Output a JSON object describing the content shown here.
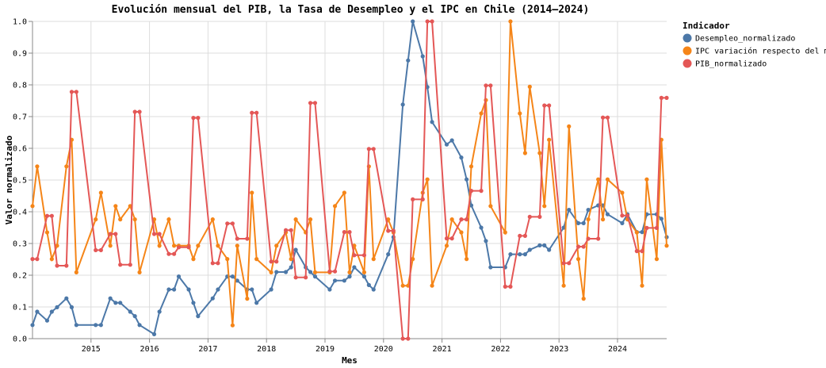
{
  "chart_data": {
    "type": "line",
    "title": "Evolución mensual del PIB, la Tasa de Desempleo y el IPC en Chile (2014–2024)",
    "xlabel": "Mes",
    "ylabel": "Valor normalizado",
    "ylim": [
      0,
      1
    ],
    "xlim": [
      2014.0,
      2024.84
    ],
    "y_ticks": [
      "0.0",
      "0.1",
      "0.2",
      "0.3",
      "0.4",
      "0.5",
      "0.6",
      "0.7",
      "0.8",
      "0.9",
      "1.0"
    ],
    "x_ticks": [
      "2015",
      "2016",
      "2017",
      "2018",
      "2019",
      "2020",
      "2021",
      "2022",
      "2023",
      "2024"
    ],
    "grid": true,
    "legend": {
      "title": "Indicador",
      "position": "top-right"
    },
    "series": [
      {
        "name": "Desempleo_normalizado",
        "color": "#4c78a8",
        "x": [
          2014.0,
          2014.08,
          2014.25,
          2014.33,
          2014.42,
          2014.58,
          2014.67,
          2014.75,
          2015.08,
          2015.17,
          2015.33,
          2015.42,
          2015.5,
          2015.67,
          2015.75,
          2015.83,
          2016.08,
          2016.17,
          2016.33,
          2016.42,
          2016.5,
          2016.67,
          2016.75,
          2016.83,
          2017.08,
          2017.17,
          2017.33,
          2017.42,
          2017.5,
          2017.67,
          2017.75,
          2017.83,
          2018.08,
          2018.17,
          2018.33,
          2018.42,
          2018.5,
          2018.67,
          2018.75,
          2018.83,
          2019.08,
          2019.17,
          2019.33,
          2019.42,
          2019.5,
          2019.67,
          2019.75,
          2019.83,
          2020.08,
          2020.17,
          2020.33,
          2020.42,
          2020.5,
          2020.67,
          2020.75,
          2020.83,
          2021.08,
          2021.17,
          2021.33,
          2021.42,
          2021.5,
          2021.67,
          2021.75,
          2021.83,
          2022.08,
          2022.17,
          2022.33,
          2022.42,
          2022.5,
          2022.67,
          2022.75,
          2022.83,
          2023.08,
          2023.17,
          2023.33,
          2023.42,
          2023.5,
          2023.67,
          2023.75,
          2023.83,
          2024.08,
          2024.17,
          2024.33,
          2024.42,
          2024.5,
          2024.67,
          2024.75,
          2024.84
        ],
        "values": [
          0.043,
          0.085,
          0.057,
          0.085,
          0.099,
          0.127,
          0.099,
          0.043,
          0.043,
          0.043,
          0.127,
          0.113,
          0.113,
          0.085,
          0.071,
          0.043,
          0.014,
          0.085,
          0.155,
          0.155,
          0.196,
          0.155,
          0.113,
          0.071,
          0.127,
          0.155,
          0.196,
          0.196,
          0.183,
          0.155,
          0.155,
          0.113,
          0.155,
          0.21,
          0.21,
          0.225,
          0.28,
          0.225,
          0.21,
          0.196,
          0.155,
          0.183,
          0.183,
          0.196,
          0.225,
          0.196,
          0.169,
          0.155,
          0.266,
          0.32,
          0.738,
          0.877,
          1.0,
          0.89,
          0.793,
          0.683,
          0.612,
          0.625,
          0.571,
          0.502,
          0.42,
          0.35,
          0.308,
          0.225,
          0.225,
          0.266,
          0.266,
          0.266,
          0.28,
          0.294,
          0.294,
          0.28,
          0.35,
          0.406,
          0.364,
          0.364,
          0.406,
          0.42,
          0.42,
          0.392,
          0.364,
          0.392,
          0.336,
          0.336,
          0.392,
          0.392,
          0.378,
          0.32
        ]
      },
      {
        "name": "IPC variación respecto del mes anterior",
        "color": "#f58518",
        "x": [
          2014.0,
          2014.08,
          2014.25,
          2014.33,
          2014.42,
          2014.58,
          2014.67,
          2014.75,
          2015.08,
          2015.17,
          2015.33,
          2015.42,
          2015.5,
          2015.67,
          2015.75,
          2015.83,
          2016.08,
          2016.17,
          2016.33,
          2016.42,
          2016.5,
          2016.67,
          2016.75,
          2016.83,
          2017.08,
          2017.17,
          2017.33,
          2017.42,
          2017.5,
          2017.67,
          2017.75,
          2017.83,
          2018.08,
          2018.17,
          2018.33,
          2018.42,
          2018.5,
          2018.67,
          2018.75,
          2018.83,
          2019.08,
          2019.17,
          2019.33,
          2019.42,
          2019.5,
          2019.67,
          2019.75,
          2019.83,
          2020.08,
          2020.17,
          2020.33,
          2020.42,
          2020.5,
          2020.67,
          2020.75,
          2020.83,
          2021.08,
          2021.17,
          2021.33,
          2021.42,
          2021.5,
          2021.67,
          2021.75,
          2021.83,
          2022.08,
          2022.17,
          2022.33,
          2022.42,
          2022.5,
          2022.67,
          2022.75,
          2022.83,
          2023.08,
          2023.17,
          2023.33,
          2023.42,
          2023.5,
          2023.67,
          2023.75,
          2023.83,
          2024.08,
          2024.17,
          2024.33,
          2024.42,
          2024.5,
          2024.67,
          2024.75,
          2024.84
        ],
        "values": [
          0.418,
          0.543,
          0.335,
          0.251,
          0.293,
          0.543,
          0.627,
          0.209,
          0.376,
          0.46,
          0.293,
          0.418,
          0.376,
          0.418,
          0.376,
          0.209,
          0.376,
          0.293,
          0.376,
          0.293,
          0.293,
          0.293,
          0.251,
          0.293,
          0.376,
          0.293,
          0.251,
          0.042,
          0.293,
          0.126,
          0.46,
          0.251,
          0.209,
          0.293,
          0.335,
          0.251,
          0.376,
          0.335,
          0.376,
          0.209,
          0.209,
          0.418,
          0.46,
          0.209,
          0.293,
          0.209,
          0.543,
          0.251,
          0.376,
          0.335,
          0.167,
          0.167,
          0.251,
          0.46,
          0.502,
          0.167,
          0.293,
          0.376,
          0.335,
          0.251,
          0.543,
          0.71,
          0.752,
          0.418,
          0.335,
          1.0,
          0.71,
          0.585,
          0.794,
          0.585,
          0.418,
          0.627,
          0.167,
          0.669,
          0.251,
          0.126,
          0.376,
          0.502,
          0.376,
          0.502,
          0.46,
          0.376,
          0.335,
          0.167,
          0.502,
          0.251,
          0.627,
          0.293
        ]
      },
      {
        "name": "PIB_normalizado",
        "color": "#e45756",
        "x": [
          2014.0,
          2014.08,
          2014.25,
          2014.33,
          2014.42,
          2014.58,
          2014.67,
          2014.75,
          2015.08,
          2015.17,
          2015.33,
          2015.42,
          2015.5,
          2015.67,
          2015.75,
          2015.83,
          2016.08,
          2016.17,
          2016.33,
          2016.42,
          2016.5,
          2016.67,
          2016.75,
          2016.83,
          2017.08,
          2017.17,
          2017.33,
          2017.42,
          2017.5,
          2017.67,
          2017.75,
          2017.83,
          2018.08,
          2018.17,
          2018.33,
          2018.42,
          2018.5,
          2018.67,
          2018.75,
          2018.83,
          2019.08,
          2019.17,
          2019.33,
          2019.42,
          2019.5,
          2019.67,
          2019.75,
          2019.83,
          2020.08,
          2020.17,
          2020.33,
          2020.42,
          2020.5,
          2020.67,
          2020.75,
          2020.83,
          2021.08,
          2021.17,
          2021.33,
          2021.42,
          2021.5,
          2021.67,
          2021.75,
          2021.83,
          2022.08,
          2022.17,
          2022.33,
          2022.42,
          2022.5,
          2022.67,
          2022.75,
          2022.83,
          2023.08,
          2023.17,
          2023.33,
          2023.42,
          2023.5,
          2023.67,
          2023.75,
          2023.83,
          2024.08,
          2024.17,
          2024.33,
          2024.42,
          2024.5,
          2024.67,
          2024.75,
          2024.84
        ],
        "values": [
          0.251,
          0.251,
          0.387,
          0.387,
          0.23,
          0.23,
          0.778,
          0.778,
          0.279,
          0.279,
          0.33,
          0.33,
          0.233,
          0.233,
          0.715,
          0.715,
          0.33,
          0.33,
          0.267,
          0.267,
          0.288,
          0.288,
          0.696,
          0.696,
          0.238,
          0.238,
          0.363,
          0.363,
          0.315,
          0.315,
          0.712,
          0.712,
          0.243,
          0.243,
          0.342,
          0.342,
          0.193,
          0.193,
          0.743,
          0.743,
          0.212,
          0.212,
          0.336,
          0.336,
          0.263,
          0.263,
          0.598,
          0.598,
          0.34,
          0.34,
          0.0,
          0.0,
          0.439,
          0.439,
          1.0,
          1.0,
          0.316,
          0.316,
          0.376,
          0.376,
          0.466,
          0.466,
          0.798,
          0.798,
          0.164,
          0.164,
          0.324,
          0.324,
          0.384,
          0.384,
          0.735,
          0.735,
          0.238,
          0.238,
          0.29,
          0.29,
          0.315,
          0.315,
          0.697,
          0.697,
          0.388,
          0.388,
          0.276,
          0.276,
          0.349,
          0.349,
          0.759,
          0.759
        ]
      }
    ]
  }
}
